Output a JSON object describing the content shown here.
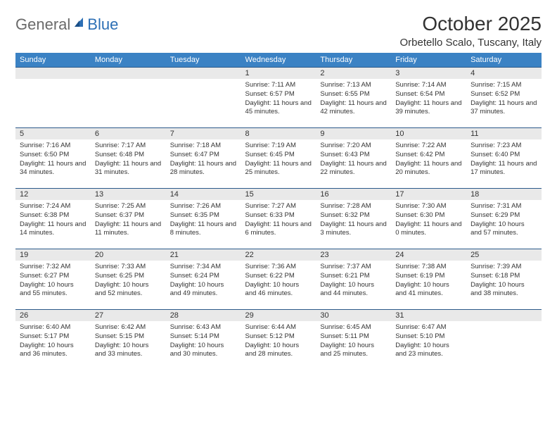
{
  "logo": {
    "gray": "General",
    "blue": "Blue"
  },
  "title": "October 2025",
  "subtitle": "Orbetello Scalo, Tuscany, Italy",
  "colors": {
    "header_bg": "#3b82c4",
    "header_text": "#ffffff",
    "daynum_bg": "#e9e9e9",
    "row_border": "#2c5a8a",
    "text": "#333333",
    "logo_gray": "#6a6a6a",
    "logo_blue": "#2c6fb5"
  },
  "weekdays": [
    "Sunday",
    "Monday",
    "Tuesday",
    "Wednesday",
    "Thursday",
    "Friday",
    "Saturday"
  ],
  "weeks": [
    [
      null,
      null,
      null,
      {
        "n": "1",
        "sunrise": "7:11 AM",
        "sunset": "6:57 PM",
        "daylight": "11 hours and 45 minutes."
      },
      {
        "n": "2",
        "sunrise": "7:13 AM",
        "sunset": "6:55 PM",
        "daylight": "11 hours and 42 minutes."
      },
      {
        "n": "3",
        "sunrise": "7:14 AM",
        "sunset": "6:54 PM",
        "daylight": "11 hours and 39 minutes."
      },
      {
        "n": "4",
        "sunrise": "7:15 AM",
        "sunset": "6:52 PM",
        "daylight": "11 hours and 37 minutes."
      }
    ],
    [
      {
        "n": "5",
        "sunrise": "7:16 AM",
        "sunset": "6:50 PM",
        "daylight": "11 hours and 34 minutes."
      },
      {
        "n": "6",
        "sunrise": "7:17 AM",
        "sunset": "6:48 PM",
        "daylight": "11 hours and 31 minutes."
      },
      {
        "n": "7",
        "sunrise": "7:18 AM",
        "sunset": "6:47 PM",
        "daylight": "11 hours and 28 minutes."
      },
      {
        "n": "8",
        "sunrise": "7:19 AM",
        "sunset": "6:45 PM",
        "daylight": "11 hours and 25 minutes."
      },
      {
        "n": "9",
        "sunrise": "7:20 AM",
        "sunset": "6:43 PM",
        "daylight": "11 hours and 22 minutes."
      },
      {
        "n": "10",
        "sunrise": "7:22 AM",
        "sunset": "6:42 PM",
        "daylight": "11 hours and 20 minutes."
      },
      {
        "n": "11",
        "sunrise": "7:23 AM",
        "sunset": "6:40 PM",
        "daylight": "11 hours and 17 minutes."
      }
    ],
    [
      {
        "n": "12",
        "sunrise": "7:24 AM",
        "sunset": "6:38 PM",
        "daylight": "11 hours and 14 minutes."
      },
      {
        "n": "13",
        "sunrise": "7:25 AM",
        "sunset": "6:37 PM",
        "daylight": "11 hours and 11 minutes."
      },
      {
        "n": "14",
        "sunrise": "7:26 AM",
        "sunset": "6:35 PM",
        "daylight": "11 hours and 8 minutes."
      },
      {
        "n": "15",
        "sunrise": "7:27 AM",
        "sunset": "6:33 PM",
        "daylight": "11 hours and 6 minutes."
      },
      {
        "n": "16",
        "sunrise": "7:28 AM",
        "sunset": "6:32 PM",
        "daylight": "11 hours and 3 minutes."
      },
      {
        "n": "17",
        "sunrise": "7:30 AM",
        "sunset": "6:30 PM",
        "daylight": "11 hours and 0 minutes."
      },
      {
        "n": "18",
        "sunrise": "7:31 AM",
        "sunset": "6:29 PM",
        "daylight": "10 hours and 57 minutes."
      }
    ],
    [
      {
        "n": "19",
        "sunrise": "7:32 AM",
        "sunset": "6:27 PM",
        "daylight": "10 hours and 55 minutes."
      },
      {
        "n": "20",
        "sunrise": "7:33 AM",
        "sunset": "6:25 PM",
        "daylight": "10 hours and 52 minutes."
      },
      {
        "n": "21",
        "sunrise": "7:34 AM",
        "sunset": "6:24 PM",
        "daylight": "10 hours and 49 minutes."
      },
      {
        "n": "22",
        "sunrise": "7:36 AM",
        "sunset": "6:22 PM",
        "daylight": "10 hours and 46 minutes."
      },
      {
        "n": "23",
        "sunrise": "7:37 AM",
        "sunset": "6:21 PM",
        "daylight": "10 hours and 44 minutes."
      },
      {
        "n": "24",
        "sunrise": "7:38 AM",
        "sunset": "6:19 PM",
        "daylight": "10 hours and 41 minutes."
      },
      {
        "n": "25",
        "sunrise": "7:39 AM",
        "sunset": "6:18 PM",
        "daylight": "10 hours and 38 minutes."
      }
    ],
    [
      {
        "n": "26",
        "sunrise": "6:40 AM",
        "sunset": "5:17 PM",
        "daylight": "10 hours and 36 minutes."
      },
      {
        "n": "27",
        "sunrise": "6:42 AM",
        "sunset": "5:15 PM",
        "daylight": "10 hours and 33 minutes."
      },
      {
        "n": "28",
        "sunrise": "6:43 AM",
        "sunset": "5:14 PM",
        "daylight": "10 hours and 30 minutes."
      },
      {
        "n": "29",
        "sunrise": "6:44 AM",
        "sunset": "5:12 PM",
        "daylight": "10 hours and 28 minutes."
      },
      {
        "n": "30",
        "sunrise": "6:45 AM",
        "sunset": "5:11 PM",
        "daylight": "10 hours and 25 minutes."
      },
      {
        "n": "31",
        "sunrise": "6:47 AM",
        "sunset": "5:10 PM",
        "daylight": "10 hours and 23 minutes."
      },
      null
    ]
  ],
  "labels": {
    "sunrise": "Sunrise: ",
    "sunset": "Sunset: ",
    "daylight": "Daylight: "
  }
}
